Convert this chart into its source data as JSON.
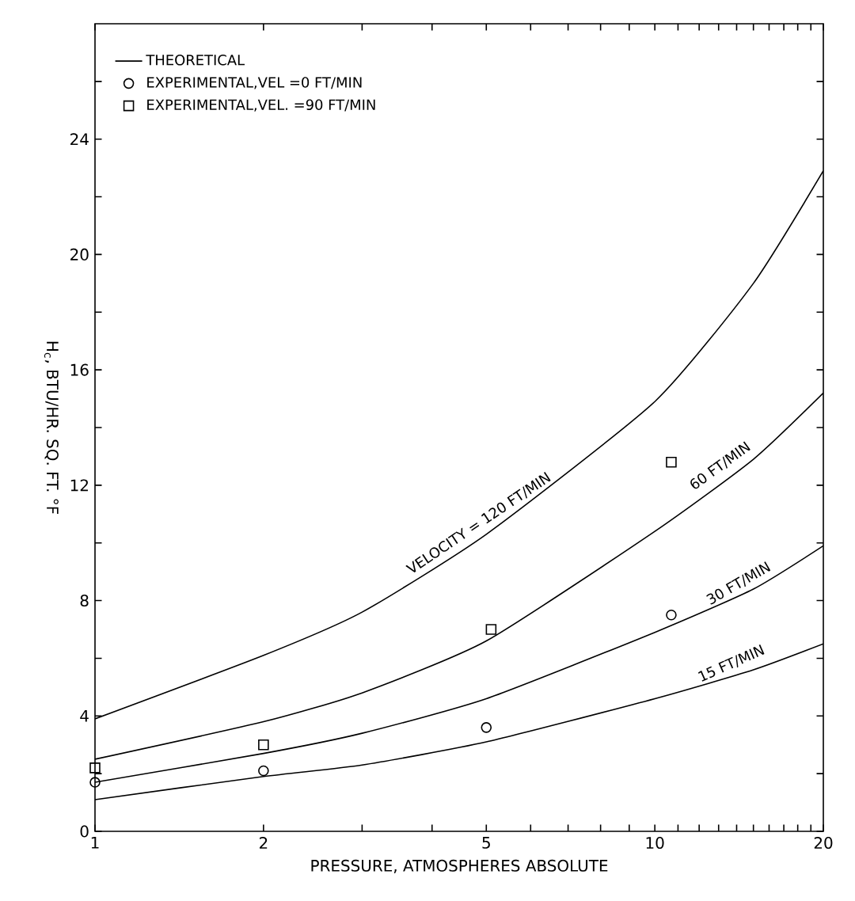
{
  "chart_data": {
    "type": "line",
    "xlabel": "PRESSURE, ATMOSPHERES ABSOLUTE",
    "ylabel": "H$_{c}$, BTU/HR. SQ. FT. °F",
    "log": "x",
    "xlim": [
      1,
      20
    ],
    "ylim": [
      0,
      28
    ],
    "xticks": [
      1,
      2,
      {
        "value": 3,
        "label": null
      },
      {
        "value": 4,
        "label": null
      },
      5,
      {
        "value": 6,
        "label": null
      },
      {
        "value": 7,
        "label": null
      },
      {
        "value": 8,
        "label": null
      },
      {
        "value": 9,
        "label": null
      },
      10,
      {
        "value": 11,
        "label": null
      },
      {
        "value": 12,
        "label": null
      },
      {
        "value": 13,
        "label": null
      },
      {
        "value": 14,
        "label": null
      },
      {
        "value": 15,
        "label": null
      },
      {
        "value": 16,
        "label": null
      },
      {
        "value": 17,
        "label": null
      },
      {
        "value": 18,
        "label": null
      },
      {
        "value": 19,
        "label": null
      },
      20
    ],
    "yticks": [
      0,
      {
        "value": 2,
        "label": null
      },
      4,
      {
        "value": 6,
        "label": null
      },
      8,
      {
        "value": 10,
        "label": null
      },
      12,
      {
        "value": 14,
        "label": null
      },
      16,
      {
        "value": 18,
        "label": null
      },
      20,
      {
        "value": 22,
        "label": null
      },
      24,
      {
        "value": 26,
        "label": null
      }
    ],
    "grid": false,
    "legend": "top left",
    "series": [
      {
        "name": "THEORETICAL",
        "color": "#000000",
        "marker": "none",
        "line_style": "solid",
        "x": [
          1,
          2,
          3,
          5,
          10,
          15,
          20
        ],
        "values": [
          3.9,
          6.1,
          7.6,
          10.3,
          14.9,
          19.0,
          22.9
        ]
      },
      {
        "color": "#000000",
        "marker": "none",
        "line_style": "solid",
        "x": [
          1,
          2,
          3,
          5,
          10,
          15,
          20
        ],
        "values": [
          2.5,
          3.8,
          4.8,
          6.6,
          10.4,
          12.9,
          15.2
        ]
      },
      {
        "color": "#000000",
        "marker": "none",
        "line_style": "solid",
        "x": [
          1,
          2,
          3,
          5,
          10,
          15,
          20
        ],
        "values": [
          1.7,
          2.7,
          3.4,
          4.6,
          6.9,
          8.4,
          9.9
        ]
      },
      {
        "color": "#000000",
        "marker": "none",
        "line_style": "solid",
        "x": [
          1,
          2,
          3,
          5,
          10,
          15,
          20
        ],
        "values": [
          1.1,
          1.9,
          2.3,
          3.1,
          4.6,
          5.6,
          6.5
        ]
      },
      {
        "name": "EXPERIMENTAL,VEL =0 FT/MIN",
        "type": "scatter",
        "color": "#000000",
        "marker": "circle",
        "x": [
          1,
          2,
          5,
          10.7
        ],
        "values": [
          1.7,
          2.1,
          3.6,
          7.5
        ]
      },
      {
        "name": "EXPERIMENTAL,VEL. =90 FT/MIN",
        "type": "scatter",
        "color": "#000000",
        "marker": "square",
        "x": [
          1,
          2,
          5.1,
          10.7
        ],
        "values": [
          2.2,
          3.0,
          7.0,
          12.8
        ]
      }
    ],
    "annotations": [
      {
        "text": "VELOCITY = 120 FT/MIN",
        "x": 5,
        "y": 10.3
      },
      {
        "text": "60 FT/MIN",
        "x": 13.5,
        "y": 12.3
      },
      {
        "text": "30 FT/MIN",
        "x": 14.5,
        "y": 8.2
      },
      {
        "text": "15 FT/MIN",
        "x": 14,
        "y": 5.4
      }
    ]
  }
}
